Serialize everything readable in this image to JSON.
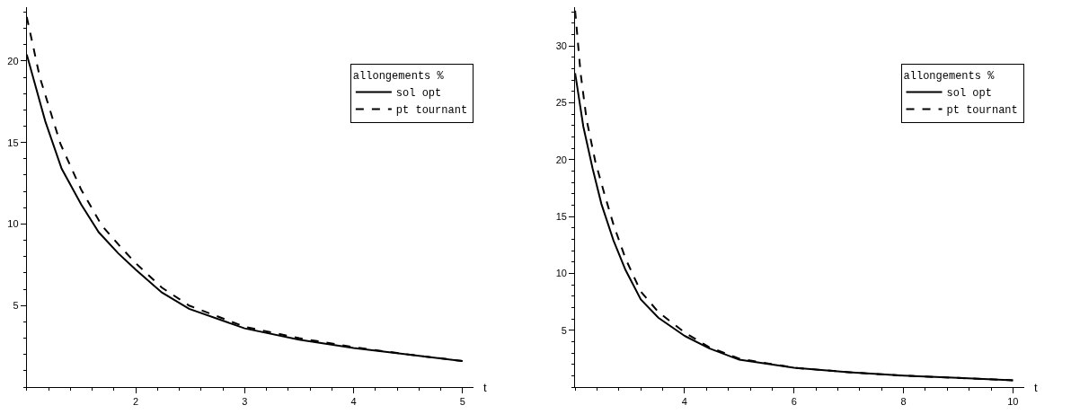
{
  "chart_data": [
    {
      "type": "line",
      "xlabel": "t",
      "legend_title": "allongements %",
      "legend": "top right",
      "xlim": [
        1,
        5.1
      ],
      "ylim": [
        0,
        23.3
      ],
      "xticks": [
        2,
        3,
        4,
        5
      ],
      "yticks": [
        5,
        10,
        15,
        20
      ],
      "series": [
        {
          "name": "sol opt",
          "color": "#000000",
          "line_style": "solid",
          "x": [
            1,
            1.17,
            1.32,
            1.5,
            1.66,
            1.84,
            2,
            2.24,
            2.49,
            3,
            3.5,
            4,
            4.5,
            5
          ],
          "values": [
            20.4,
            16.3,
            13.4,
            11.2,
            9.5,
            8.2,
            7.2,
            5.8,
            4.8,
            3.6,
            2.9,
            2.4,
            2,
            1.6
          ]
        },
        {
          "name": "pt tournant",
          "color": "#000000",
          "line_style": "dashed",
          "x": [
            1,
            1.12,
            1.31,
            1.5,
            1.69,
            1.86,
            2,
            2.24,
            2.49,
            3,
            3.5,
            4,
            4.5,
            5
          ],
          "values": [
            22.7,
            19,
            14.9,
            12.1,
            9.9,
            8.6,
            7.6,
            6.1,
            5,
            3.7,
            3,
            2.45,
            2,
            1.6
          ]
        }
      ]
    },
    {
      "type": "line",
      "xlabel": "t",
      "legend_title": "allongements %",
      "legend": "top right",
      "xlim": [
        2,
        10.2
      ],
      "ylim": [
        0,
        33.4
      ],
      "xticks": [
        4,
        6,
        8,
        10
      ],
      "yticks": [
        5,
        10,
        15,
        20,
        25,
        30
      ],
      "series": [
        {
          "name": "sol opt",
          "color": "#000000",
          "line_style": "solid",
          "x": [
            2,
            2.15,
            2.32,
            2.48,
            2.7,
            2.92,
            3.2,
            3.52,
            4,
            4.45,
            5,
            6,
            7,
            8,
            9,
            10
          ],
          "values": [
            27.6,
            22.9,
            19.2,
            16.1,
            12.9,
            10.3,
            7.7,
            6.1,
            4.5,
            3.4,
            2.4,
            1.7,
            1.3,
            1,
            0.8,
            0.6
          ]
        },
        {
          "name": "pt tournant",
          "color": "#000000",
          "line_style": "dashed",
          "x": [
            2,
            2.1,
            2.21,
            2.37,
            2.54,
            2.7,
            2.92,
            3.2,
            3.52,
            4,
            4.45,
            5,
            6,
            7,
            8,
            9,
            10
          ],
          "values": [
            33.1,
            27.6,
            23.5,
            19.8,
            16.9,
            14.3,
            11.3,
            8.4,
            6.6,
            4.8,
            3.5,
            2.5,
            1.7,
            1.3,
            1,
            0.8,
            0.6
          ]
        }
      ]
    }
  ]
}
